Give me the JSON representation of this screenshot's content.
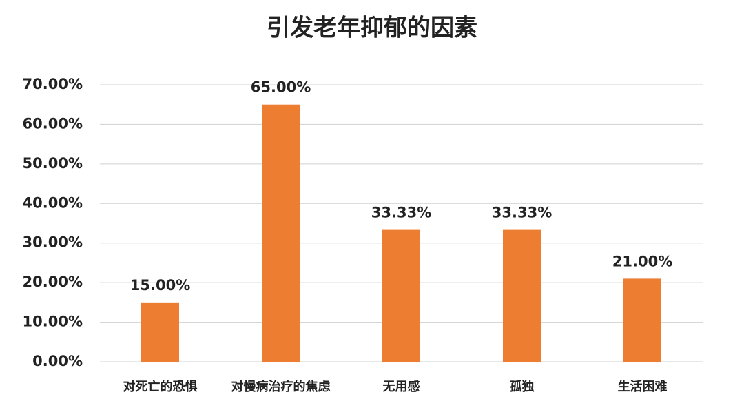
{
  "chart_data": {
    "type": "bar",
    "title": "引发老年抑郁的因素",
    "categories": [
      "对死亡的恐惧",
      "对慢病治疗的焦虑",
      "无用感",
      "孤独",
      "生活困难"
    ],
    "values": [
      15,
      65,
      33.33,
      33.33,
      21
    ],
    "value_labels": [
      "15.00%",
      "65.00%",
      "33.33%",
      "33.33%",
      "21.00%"
    ],
    "color": "#ED7D31",
    "ylim": [
      0,
      70
    ],
    "yticks": [
      {
        "value": 0,
        "label": "0.00%"
      },
      {
        "value": 10,
        "label": "10.00%"
      },
      {
        "value": 20,
        "label": "20.00%"
      },
      {
        "value": 30,
        "label": "30.00%"
      },
      {
        "value": 40,
        "label": "40.00%"
      },
      {
        "value": 50,
        "label": "50.00%"
      },
      {
        "value": 60,
        "label": "60.00%"
      },
      {
        "value": 70,
        "label": "70.00%"
      }
    ],
    "grid": true
  }
}
